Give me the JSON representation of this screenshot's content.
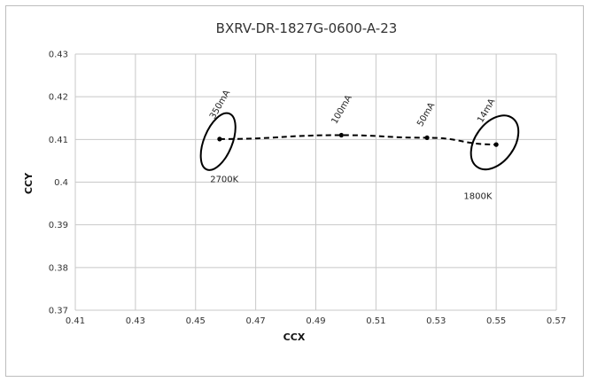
{
  "chart_data": {
    "type": "scatter",
    "title": "BXRV-DR-1827G-0600-A-23",
    "xlabel": "CCX",
    "ylabel": "CCY",
    "xlim": [
      0.41,
      0.57
    ],
    "ylim": [
      0.37,
      0.43
    ],
    "x_ticks": [
      "0.41",
      "0.43",
      "0.45",
      "0.47",
      "0.49",
      "0.51",
      "0.53",
      "0.55",
      "0.57"
    ],
    "y_ticks": [
      "0.43",
      "0.42",
      "0.41",
      "0.4",
      "0.39",
      "0.38",
      "0.37"
    ],
    "grid": true,
    "series": [
      {
        "points": [
          {
            "x": 0.458,
            "y": 0.4101,
            "label": "350mA"
          },
          {
            "x": 0.4985,
            "y": 0.411,
            "label": "100mA"
          },
          {
            "x": 0.527,
            "y": 0.4104,
            "label": "50mA"
          },
          {
            "x": 0.55,
            "y": 0.4088,
            "label": "14mA"
          }
        ],
        "line_style": "dashed"
      }
    ],
    "ellipses": [
      {
        "label": "2700K",
        "center": [
          0.4575,
          0.4095
        ]
      },
      {
        "label": "1800K",
        "center": [
          0.5495,
          0.4093
        ]
      }
    ]
  }
}
